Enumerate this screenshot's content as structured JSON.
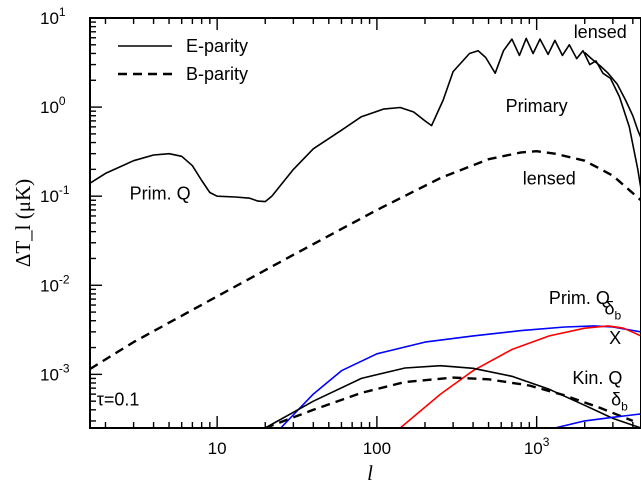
{
  "chart_data": {
    "type": "line",
    "xlabel": "l",
    "ylabel": "ΔT_l (μK)",
    "xscale": "log",
    "yscale": "log",
    "xlim": [
      1.6,
      4500
    ],
    "ylim": [
      0.00025,
      10
    ],
    "x_ticks": [
      {
        "value": 10,
        "label": "10"
      },
      {
        "value": 100,
        "label": "100"
      },
      {
        "value": 1000,
        "label": "10",
        "exp": "3"
      }
    ],
    "y_ticks": [
      {
        "value": 10,
        "label": "10",
        "exp": "1"
      },
      {
        "value": 1,
        "label": "10",
        "exp": "0"
      },
      {
        "value": 0.1,
        "label": "10",
        "exp": "-1"
      },
      {
        "value": 0.01,
        "label": "10",
        "exp": "-2"
      },
      {
        "value": 0.001,
        "label": "10",
        "exp": "-3"
      }
    ],
    "legend": {
      "placement": "top-left",
      "entries": [
        {
          "label": "E-parity",
          "style": "solid"
        },
        {
          "label": "B-parity",
          "style": "dashed"
        }
      ]
    },
    "annotations": [
      {
        "text": "lensed",
        "x": 2500,
        "y": 6.0
      },
      {
        "text": "Primary",
        "x": 1000,
        "y": 0.88
      },
      {
        "text": "lensed",
        "x": 1200,
        "y": 0.135
      },
      {
        "text": "Prim. Q",
        "x": 4.4,
        "y": 0.092
      },
      {
        "text": "Prim. Q",
        "x": 1850,
        "y": 0.0062
      },
      {
        "text": "Kin. Q",
        "x": 2400,
        "y": 0.00078
      },
      {
        "text": "τ=0.1",
        "x": 2.4,
        "y": 0.00045
      },
      {
        "text": "δ",
        "sub": "b",
        "x": 3000,
        "y": 0.0047,
        "color": "#0000ff"
      },
      {
        "text": "X",
        "x": 3100,
        "y": 0.0022,
        "color": "#ff0000"
      },
      {
        "text": "δ",
        "sub": "b",
        "x": 3300,
        "y": 0.00045,
        "color": "#0000ff"
      }
    ],
    "series": [
      {
        "style": "solid",
        "color": "#000000",
        "points": [
          [
            1.6,
            0.14
          ],
          [
            2,
            0.18
          ],
          [
            3,
            0.25
          ],
          [
            4,
            0.29
          ],
          [
            5,
            0.3
          ],
          [
            6,
            0.28
          ],
          [
            7,
            0.22
          ],
          [
            8,
            0.15
          ],
          [
            9,
            0.11
          ],
          [
            10,
            0.1
          ],
          [
            13,
            0.098
          ],
          [
            16,
            0.095
          ],
          [
            18,
            0.088
          ],
          [
            20,
            0.087
          ],
          [
            22,
            0.1
          ],
          [
            30,
            0.2
          ],
          [
            40,
            0.34
          ],
          [
            60,
            0.55
          ],
          [
            80,
            0.78
          ],
          [
            110,
            0.95
          ],
          [
            140,
            0.99
          ],
          [
            170,
            0.88
          ],
          [
            200,
            0.7
          ],
          [
            220,
            0.62
          ],
          [
            260,
            1.2
          ],
          [
            300,
            2.5
          ],
          [
            380,
            4.0
          ],
          [
            430,
            4.3
          ],
          [
            480,
            3.6
          ],
          [
            550,
            2.4
          ],
          [
            620,
            4.3
          ],
          [
            700,
            5.8
          ],
          [
            780,
            3.8
          ],
          [
            860,
            5.9
          ],
          [
            950,
            4.0
          ],
          [
            1050,
            5.8
          ],
          [
            1180,
            3.9
          ],
          [
            1300,
            5.6
          ],
          [
            1450,
            3.8
          ],
          [
            1600,
            5.0
          ],
          [
            1780,
            3.5
          ],
          [
            1950,
            4.3
          ],
          [
            2150,
            3.0
          ],
          [
            2350,
            3.3
          ],
          [
            2600,
            2.4
          ],
          [
            2900,
            2.1
          ],
          [
            3300,
            1.3
          ],
          [
            3800,
            0.6
          ],
          [
            4300,
            0.2
          ],
          [
            4500,
            0.12
          ]
        ]
      },
      {
        "style": "solid",
        "color": "#000000",
        "points": [
          [
            2000,
            4.1
          ],
          [
            2200,
            3.5
          ],
          [
            2500,
            2.9
          ],
          [
            2800,
            2.4
          ],
          [
            3200,
            1.8
          ],
          [
            3600,
            1.2
          ],
          [
            4000,
            0.8
          ],
          [
            4300,
            0.55
          ],
          [
            4500,
            0.45
          ]
        ]
      },
      {
        "style": "dashed",
        "color": "#000000",
        "points": [
          [
            1.6,
            0.00115
          ],
          [
            3,
            0.0023
          ],
          [
            10,
            0.0075
          ],
          [
            30,
            0.022
          ],
          [
            100,
            0.07
          ],
          [
            250,
            0.16
          ],
          [
            500,
            0.26
          ],
          [
            800,
            0.31
          ],
          [
            1000,
            0.32
          ],
          [
            1300,
            0.3
          ],
          [
            2000,
            0.25
          ],
          [
            3000,
            0.17
          ],
          [
            4500,
            0.09
          ]
        ]
      },
      {
        "style": "solid",
        "color": "#0000ff",
        "points": [
          [
            25,
            0.00025
          ],
          [
            40,
            0.0006
          ],
          [
            60,
            0.0011
          ],
          [
            100,
            0.0017
          ],
          [
            200,
            0.0023
          ],
          [
            400,
            0.0027
          ],
          [
            800,
            0.0031
          ],
          [
            1500,
            0.0034
          ],
          [
            2300,
            0.0035
          ],
          [
            3000,
            0.0034
          ],
          [
            4500,
            0.003
          ]
        ]
      },
      {
        "style": "solid",
        "color": "#ff0000",
        "points": [
          [
            140,
            0.00025
          ],
          [
            250,
            0.0006
          ],
          [
            400,
            0.0011
          ],
          [
            700,
            0.0019
          ],
          [
            1200,
            0.0027
          ],
          [
            2000,
            0.0033
          ],
          [
            2800,
            0.0035
          ],
          [
            3500,
            0.0033
          ],
          [
            4500,
            0.0027
          ]
        ]
      },
      {
        "style": "solid",
        "color": "#000000",
        "points": [
          [
            20,
            0.00025
          ],
          [
            40,
            0.0005
          ],
          [
            80,
            0.0009
          ],
          [
            150,
            0.00118
          ],
          [
            250,
            0.00125
          ],
          [
            400,
            0.00117
          ],
          [
            700,
            0.00095
          ],
          [
            1200,
            0.00068
          ],
          [
            2000,
            0.00045
          ],
          [
            3000,
            0.00032
          ],
          [
            4500,
            0.00025
          ]
        ]
      },
      {
        "style": "dashed",
        "color": "#000000",
        "points": [
          [
            20,
            0.00025
          ],
          [
            40,
            0.0004
          ],
          [
            80,
            0.00062
          ],
          [
            150,
            0.00082
          ],
          [
            300,
            0.00092
          ],
          [
            500,
            0.00088
          ],
          [
            900,
            0.00075
          ],
          [
            1500,
            0.00058
          ],
          [
            2500,
            0.00042
          ],
          [
            4000,
            0.0003
          ]
        ]
      },
      {
        "style": "solid",
        "color": "#0000ff",
        "points": [
          [
            1300,
            0.00025
          ],
          [
            2000,
            0.0003
          ],
          [
            3000,
            0.00033
          ],
          [
            4500,
            0.00036
          ]
        ]
      }
    ]
  }
}
